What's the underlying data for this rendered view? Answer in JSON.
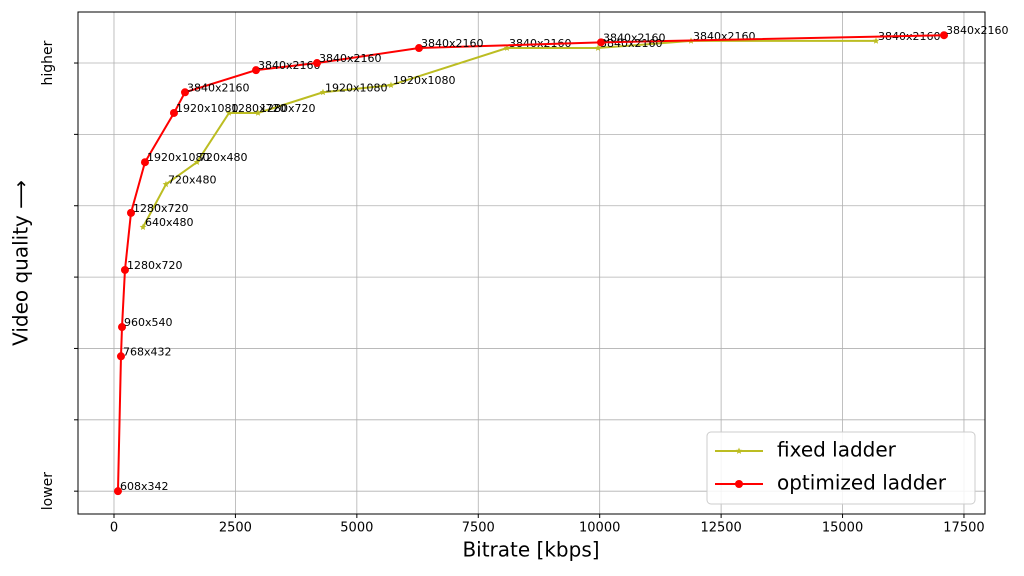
{
  "chart_data": {
    "type": "line",
    "x_label": "Bitrate [kbps]",
    "y_label": "Video quality ⟶",
    "xlim": [
      -741,
      17933
    ],
    "ylim": [
      -0.32,
      6.715
    ],
    "xticks": [
      0,
      2500,
      5000,
      7500,
      10000,
      12500,
      15000,
      17500
    ],
    "yticks": [
      {
        "value": 0,
        "label": "lower"
      },
      {
        "value": 1,
        "label": null
      },
      {
        "value": 2,
        "label": null
      },
      {
        "value": 3,
        "label": null
      },
      {
        "value": 4,
        "label": null
      },
      {
        "value": 5,
        "label": null
      },
      {
        "value": 6,
        "label": "higher"
      }
    ],
    "grid": true,
    "legend": "lower right",
    "series": [
      {
        "name": "fixed ladder",
        "color": "#bcbd22",
        "marker": "star",
        "x": [
          597,
          1070,
          1709,
          2368,
          2965,
          4303,
          5703,
          8091,
          9965,
          11880,
          15689
        ],
        "values": [
          3.7,
          4.3,
          4.61,
          5.3,
          5.3,
          5.59,
          5.69,
          6.21,
          6.21,
          6.31,
          6.31
        ],
        "labels": [
          "640x480",
          "720x480",
          "720x480",
          "1280x720",
          "1280x720",
          "1920x1080",
          "1920x1080",
          "3840x2160",
          "3840x2160",
          "3840x2160",
          "3840x2160"
        ]
      },
      {
        "name": "optimized ladder",
        "color": "#ff0000",
        "marker": "circle",
        "x": [
          82,
          144,
          165,
          226,
          350,
          638,
          1235,
          1462,
          2924,
          4180,
          6280,
          10027,
          17089
        ],
        "values": [
          0,
          1.89,
          2.3,
          3.1,
          3.9,
          4.61,
          5.3,
          5.59,
          5.9,
          6.0,
          6.21,
          6.29,
          6.39
        ],
        "labels": [
          "608x342",
          "768x432",
          "960x540",
          "1280x720",
          "1280x720",
          "1920x1080",
          "1920x1080",
          "3840x2160",
          "3840x2160",
          "3840x2160",
          "3840x2160",
          "3840x2160",
          "3840x2160"
        ]
      }
    ]
  }
}
